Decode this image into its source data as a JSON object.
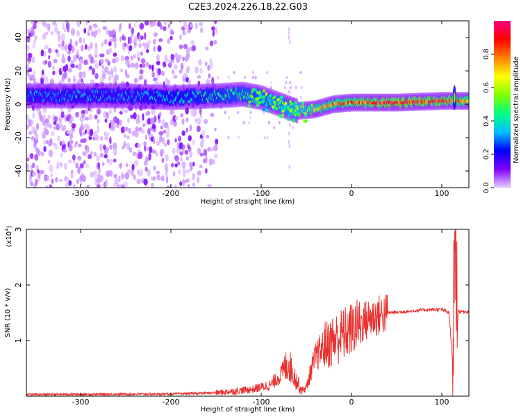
{
  "title": "C2E3.2024.226.18.22.G03",
  "chart_data": [
    {
      "type": "heatmap",
      "xlabel": "Height of straight line (km)",
      "ylabel": "Frequency (Hz)",
      "xlim": [
        -360,
        130
      ],
      "ylim": [
        -50,
        50
      ],
      "xticks": [
        -300,
        -200,
        -100,
        0,
        100
      ],
      "yticks": [
        -40,
        -20,
        0,
        20,
        40
      ],
      "colorbar": {
        "label": "Normalized spectral amplitude",
        "range": [
          0,
          1
        ],
        "ticks": [
          "0.0",
          "0.2",
          "0.4",
          "0.6",
          "0.8"
        ],
        "colors": [
          "#e6ccff",
          "#8000ff",
          "#0000ff",
          "#00c0ff",
          "#00ff80",
          "#80ff00",
          "#ffff00",
          "#ff8000",
          "#ff0000",
          "#ff0080"
        ]
      },
      "ridge": {
        "x": [
          -360,
          -300,
          -250,
          -200,
          -150,
          -120,
          -100,
          -80,
          -60,
          -40,
          -20,
          0,
          50,
          100,
          130
        ],
        "freq": [
          5,
          5,
          5,
          4,
          5,
          6,
          4,
          0,
          -4,
          -3,
          0,
          1,
          1,
          2,
          2
        ],
        "amplitude": [
          0.35,
          0.35,
          0.35,
          0.4,
          0.45,
          0.5,
          0.5,
          0.55,
          0.6,
          0.7,
          0.8,
          0.85,
          0.95,
          0.9,
          0.8
        ]
      }
    },
    {
      "type": "line",
      "xlabel": "Height of straight line (km)",
      "ylabel": "SNR (10 * v/v)",
      "multiplier_label": "(x10",
      "multiplier_exp": "4",
      "xlim": [
        -360,
        130
      ],
      "ylim": [
        0,
        3
      ],
      "xticks": [
        -300,
        -200,
        -100,
        0,
        100
      ],
      "yticks": [
        1,
        2,
        3
      ],
      "line_color": "#e8312f",
      "series": [
        {
          "x": [
            -360,
            -200,
            -150,
            -110,
            -90,
            -80,
            -70,
            -60,
            -55,
            -50,
            -45,
            -40,
            -30,
            -20,
            -10,
            0,
            10,
            20,
            30,
            40,
            60,
            80,
            100,
            108,
            112,
            114,
            116,
            118,
            120,
            130
          ],
          "y": [
            0.03,
            0.04,
            0.06,
            0.12,
            0.2,
            0.35,
            0.6,
            0.25,
            0.1,
            0.15,
            0.45,
            0.7,
            0.9,
            1.0,
            1.1,
            1.2,
            1.3,
            1.4,
            1.45,
            1.5,
            1.52,
            1.55,
            1.56,
            1.5,
            0.6,
            2.6,
            2.2,
            1.55,
            1.52,
            1.52
          ]
        }
      ]
    }
  ]
}
